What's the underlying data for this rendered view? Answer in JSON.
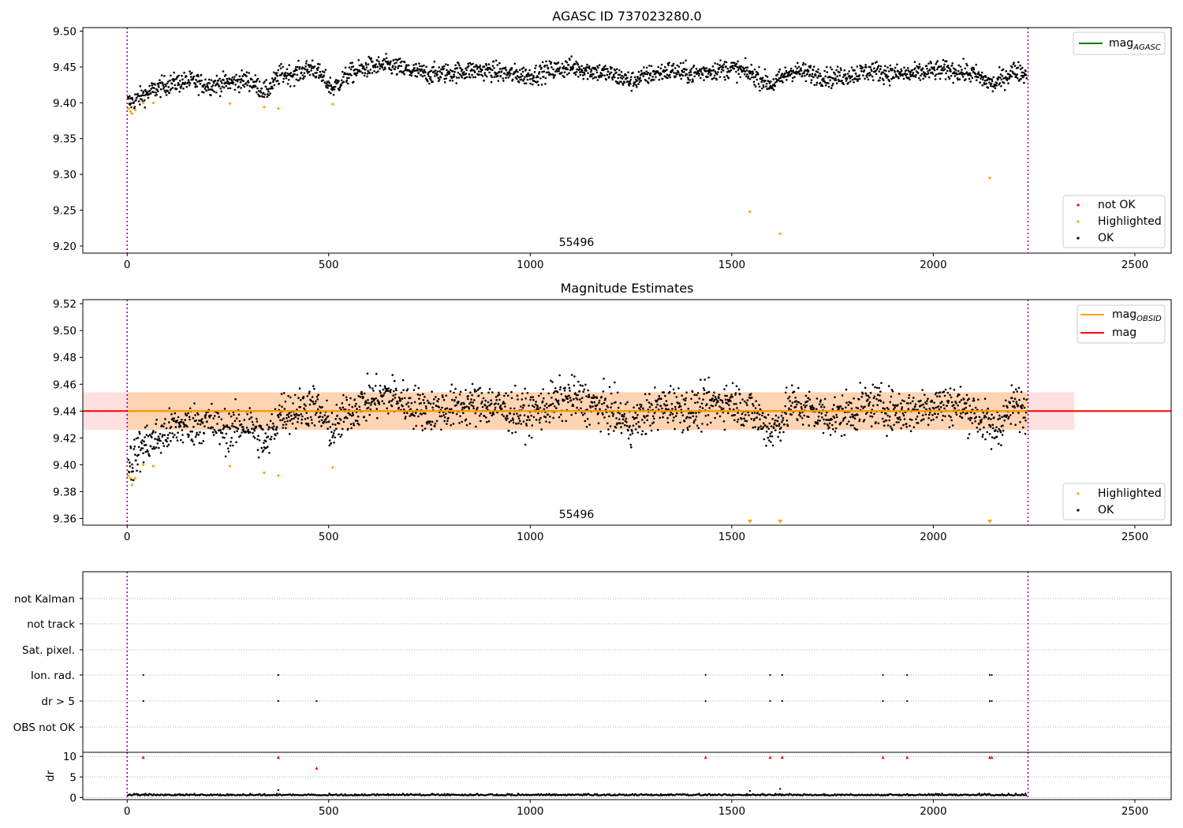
{
  "chart_data": [
    {
      "type": "scatter",
      "title": "AGASC ID 737023280.0",
      "xlim": [
        -110,
        2590
      ],
      "ylim": [
        9.19,
        9.505
      ],
      "xticks": [
        0,
        500,
        1000,
        1500,
        2000,
        2500
      ],
      "yticks": [
        9.2,
        9.25,
        9.3,
        9.35,
        9.4,
        9.45,
        9.5
      ],
      "ytick_labels": [
        "9.20",
        "9.25",
        "9.30",
        "9.35",
        "9.40",
        "9.45",
        "9.50"
      ],
      "vlines": [
        0,
        2235
      ],
      "vline_color": "#800080",
      "annotation": "55496",
      "series": [
        {
          "name": "OK",
          "color": "#000000",
          "points": [
            [
              10,
              9.401
            ],
            [
              40,
              9.41
            ],
            [
              80,
              9.422
            ],
            [
              120,
              9.428
            ],
            [
              160,
              9.43
            ],
            [
              200,
              9.425
            ],
            [
              250,
              9.428
            ],
            [
              300,
              9.432
            ],
            [
              345,
              9.415
            ],
            [
              380,
              9.44
            ],
            [
              420,
              9.44
            ],
            [
              460,
              9.45
            ],
            [
              510,
              9.42
            ],
            [
              550,
              9.44
            ],
            [
              600,
              9.45
            ],
            [
              650,
              9.452
            ],
            [
              700,
              9.445
            ],
            [
              750,
              9.44
            ],
            [
              800,
              9.442
            ],
            [
              850,
              9.445
            ],
            [
              900,
              9.445
            ],
            [
              950,
              9.44
            ],
            [
              1000,
              9.438
            ],
            [
              1050,
              9.445
            ],
            [
              1100,
              9.45
            ],
            [
              1150,
              9.445
            ],
            [
              1200,
              9.44
            ],
            [
              1250,
              9.43
            ],
            [
              1300,
              9.44
            ],
            [
              1350,
              9.445
            ],
            [
              1400,
              9.44
            ],
            [
              1450,
              9.445
            ],
            [
              1500,
              9.448
            ],
            [
              1550,
              9.44
            ],
            [
              1600,
              9.425
            ],
            [
              1650,
              9.445
            ],
            [
              1700,
              9.44
            ],
            [
              1750,
              9.435
            ],
            [
              1800,
              9.44
            ],
            [
              1850,
              9.445
            ],
            [
              1900,
              9.44
            ],
            [
              1950,
              9.44
            ],
            [
              2000,
              9.445
            ],
            [
              2050,
              9.445
            ],
            [
              2100,
              9.44
            ],
            [
              2150,
              9.425
            ],
            [
              2200,
              9.445
            ],
            [
              2230,
              9.44
            ]
          ]
        },
        {
          "name": "Highlighted",
          "color": "#FFA500",
          "points": [
            [
              3,
              9.392
            ],
            [
              8,
              9.388
            ],
            [
              12,
              9.385
            ],
            [
              20,
              9.39
            ],
            [
              40,
              9.4
            ],
            [
              65,
              9.4
            ],
            [
              255,
              9.399
            ],
            [
              340,
              9.394
            ],
            [
              375,
              9.392
            ],
            [
              510,
              9.398
            ],
            [
              1545,
              9.248
            ],
            [
              1620,
              9.217
            ],
            [
              2140,
              9.295
            ]
          ]
        },
        {
          "name": "not OK",
          "color": "#FF0000",
          "points": []
        }
      ],
      "lines": [
        {
          "name": "mag_AGASC",
          "color": "#008000"
        }
      ],
      "legend_lines_location": "upper right",
      "legend_points_location": "lower right"
    },
    {
      "type": "scatter",
      "title": "Magnitude Estimates",
      "xlim": [
        -110,
        2590
      ],
      "ylim": [
        9.355,
        9.523
      ],
      "xticks": [
        0,
        500,
        1000,
        1500,
        2000,
        2500
      ],
      "yticks": [
        9.36,
        9.38,
        9.4,
        9.42,
        9.44,
        9.46,
        9.48,
        9.5,
        9.52
      ],
      "ytick_labels": [
        "9.36",
        "9.38",
        "9.40",
        "9.42",
        "9.44",
        "9.46",
        "9.48",
        "9.50",
        "9.52"
      ],
      "vlines": [
        0,
        2235
      ],
      "vline_color": "#800080",
      "annotation": "55496",
      "mag": 9.44,
      "mag_band": [
        9.426,
        9.454
      ],
      "mag_obsid": 9.44,
      "mag_obsid_band": [
        9.426,
        9.454
      ],
      "series": [
        {
          "name": "OK",
          "color": "#000000",
          "points": [
            [
              10,
              9.402
            ],
            [
              40,
              9.415
            ],
            [
              80,
              9.42
            ],
            [
              120,
              9.428
            ],
            [
              160,
              9.43
            ],
            [
              200,
              9.432
            ],
            [
              250,
              9.425
            ],
            [
              300,
              9.432
            ],
            [
              345,
              9.415
            ],
            [
              380,
              9.44
            ],
            [
              420,
              9.44
            ],
            [
              460,
              9.445
            ],
            [
              510,
              9.425
            ],
            [
              550,
              9.44
            ],
            [
              600,
              9.448
            ],
            [
              650,
              9.452
            ],
            [
              700,
              9.445
            ],
            [
              750,
              9.44
            ],
            [
              800,
              9.442
            ],
            [
              850,
              9.445
            ],
            [
              900,
              9.445
            ],
            [
              950,
              9.44
            ],
            [
              1000,
              9.438
            ],
            [
              1050,
              9.445
            ],
            [
              1100,
              9.45
            ],
            [
              1150,
              9.445
            ],
            [
              1200,
              9.44
            ],
            [
              1250,
              9.43
            ],
            [
              1300,
              9.44
            ],
            [
              1350,
              9.445
            ],
            [
              1400,
              9.44
            ],
            [
              1450,
              9.445
            ],
            [
              1500,
              9.448
            ],
            [
              1550,
              9.44
            ],
            [
              1600,
              9.425
            ],
            [
              1650,
              9.445
            ],
            [
              1700,
              9.44
            ],
            [
              1750,
              9.435
            ],
            [
              1800,
              9.44
            ],
            [
              1850,
              9.445
            ],
            [
              1900,
              9.44
            ],
            [
              1950,
              9.44
            ],
            [
              2000,
              9.445
            ],
            [
              2050,
              9.445
            ],
            [
              2100,
              9.44
            ],
            [
              2150,
              9.425
            ],
            [
              2200,
              9.445
            ],
            [
              2230,
              9.44
            ]
          ]
        },
        {
          "name": "Highlighted",
          "color": "#FFA500",
          "points": [
            [
              3,
              9.392
            ],
            [
              8,
              9.39
            ],
            [
              12,
              9.385
            ],
            [
              20,
              9.39
            ],
            [
              40,
              9.4
            ],
            [
              65,
              9.399
            ],
            [
              255,
              9.399
            ],
            [
              340,
              9.394
            ],
            [
              375,
              9.392
            ],
            [
              510,
              9.398
            ]
          ]
        }
      ],
      "offscale_below": [
        1545,
        1620,
        2140
      ],
      "lines": [
        {
          "name": "mag_OBSID",
          "color": "#FFA500"
        },
        {
          "name": "mag",
          "color": "#FF0000"
        }
      ],
      "legend_lines_location": "upper right",
      "legend_points_location": "lower right"
    },
    {
      "type": "scatter",
      "title": "",
      "xlim": [
        -110,
        2590
      ],
      "xticks": [
        0,
        500,
        1000,
        1500,
        2000,
        2500
      ],
      "vlines": [
        0,
        2235
      ],
      "vline_color": "#800080",
      "flag_rows": [
        "not Kalman",
        "not track",
        "Sat. pixel.",
        "Ion. rad.",
        "dr > 5",
        "OBS not OK"
      ],
      "flags": {
        "Ion. rad.": [
          40,
          375,
          1435,
          1595,
          1625,
          1875,
          1935,
          2140,
          2145
        ],
        "dr > 5": [
          40,
          375,
          470,
          1435,
          1595,
          1625,
          1875,
          1935,
          2140,
          2145
        ]
      }
    },
    {
      "type": "scatter",
      "title": "",
      "ylabel": "dr",
      "xlim": [
        -110,
        2590
      ],
      "ylim": [
        -0.5,
        11
      ],
      "xticks": [
        0,
        500,
        1000,
        1500,
        2000,
        2500
      ],
      "xtick_labels": [
        "0",
        "500",
        "1000",
        "1500",
        "2000",
        "2500"
      ],
      "yticks": [
        0,
        5,
        10
      ],
      "ytick_labels": [
        "0",
        "5",
        "10"
      ],
      "vlines": [
        0,
        2235
      ],
      "vline_color": "#800080",
      "dr_baseline": 0.5,
      "series": [
        {
          "name": "dr > 5",
          "color": "#FF0000",
          "points": [
            [
              40,
              9.8
            ],
            [
              375,
              9.8
            ],
            [
              470,
              7.2
            ],
            [
              1435,
              9.8
            ],
            [
              1595,
              9.8
            ],
            [
              1625,
              9.8
            ],
            [
              1875,
              9.8
            ],
            [
              1935,
              9.8
            ],
            [
              2140,
              9.8
            ],
            [
              2145,
              9.8
            ]
          ]
        },
        {
          "name": "dr",
          "color": "#000000",
          "points": [
            [
              375,
              1.8
            ],
            [
              1545,
              1.6
            ],
            [
              1620,
              2.1
            ]
          ]
        }
      ]
    }
  ]
}
